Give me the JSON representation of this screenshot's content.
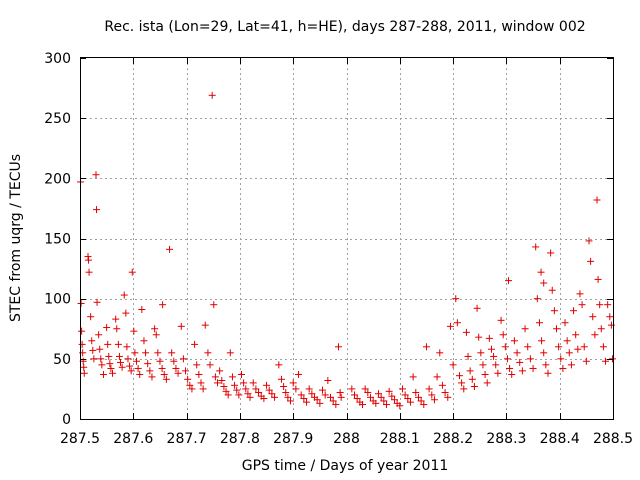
{
  "chart_data": {
    "type": "scatter",
    "title": "Rec. ista (Lon=29, Lat=41, h=HE), days 287-288, 2011, window 002",
    "xlabel": "GPS time / Days of year 2011",
    "ylabel": "STEC from uqrg / TECUs",
    "xlim": [
      287.5,
      288.5
    ],
    "ylim": [
      0,
      300
    ],
    "xticks": [
      287.5,
      287.6,
      287.7,
      287.8,
      287.9,
      288.0,
      288.1,
      288.2,
      288.3,
      288.4,
      288.5
    ],
    "xtick_labels": [
      "287.5",
      "287.6",
      "287.7",
      "287.8",
      "287.9",
      "288",
      "288.1",
      "288.2",
      "288.3",
      "288.4",
      "288.5"
    ],
    "yticks": [
      0,
      50,
      100,
      150,
      200,
      250,
      300
    ],
    "ytick_labels": [
      "0",
      "50",
      "100",
      "150",
      "200",
      "250",
      "300"
    ],
    "grid": true,
    "marker": "+",
    "color": "#e00000",
    "series": [
      {
        "points": [
          [
            287.501,
            197
          ],
          [
            287.502,
            96
          ],
          [
            287.503,
            73
          ],
          [
            287.504,
            62
          ],
          [
            287.505,
            55
          ],
          [
            287.506,
            48
          ],
          [
            287.507,
            43
          ],
          [
            287.508,
            38
          ],
          [
            287.515,
            135
          ],
          [
            287.516,
            132
          ],
          [
            287.517,
            122
          ],
          [
            287.52,
            85
          ],
          [
            287.522,
            65
          ],
          [
            287.524,
            57
          ],
          [
            287.526,
            50
          ],
          [
            287.53,
            203
          ],
          [
            287.531,
            174
          ],
          [
            287.532,
            97
          ],
          [
            287.535,
            70
          ],
          [
            287.537,
            58
          ],
          [
            287.539,
            50
          ],
          [
            287.541,
            45
          ],
          [
            287.544,
            37
          ],
          [
            287.55,
            76
          ],
          [
            287.552,
            62
          ],
          [
            287.554,
            52
          ],
          [
            287.556,
            46
          ],
          [
            287.558,
            42
          ],
          [
            287.561,
            38
          ],
          [
            287.567,
            83
          ],
          [
            287.569,
            75
          ],
          [
            287.572,
            62
          ],
          [
            287.574,
            52
          ],
          [
            287.576,
            47
          ],
          [
            287.579,
            43
          ],
          [
            287.583,
            103
          ],
          [
            287.586,
            88
          ],
          [
            287.588,
            60
          ],
          [
            287.59,
            50
          ],
          [
            287.593,
            44
          ],
          [
            287.596,
            40
          ],
          [
            287.598,
            122
          ],
          [
            287.601,
            73
          ],
          [
            287.603,
            55
          ],
          [
            287.606,
            48
          ],
          [
            287.609,
            42
          ],
          [
            287.612,
            37
          ],
          [
            287.616,
            91
          ],
          [
            287.62,
            65
          ],
          [
            287.623,
            55
          ],
          [
            287.627,
            46
          ],
          [
            287.631,
            40
          ],
          [
            287.635,
            35
          ],
          [
            287.64,
            75
          ],
          [
            287.643,
            70
          ],
          [
            287.646,
            55
          ],
          [
            287.65,
            48
          ],
          [
            287.654,
            42
          ],
          [
            287.658,
            37
          ],
          [
            287.662,
            33
          ],
          [
            287.655,
            95
          ],
          [
            287.668,
            141
          ],
          [
            287.672,
            55
          ],
          [
            287.676,
            48
          ],
          [
            287.68,
            42
          ],
          [
            287.684,
            38
          ],
          [
            287.69,
            77
          ],
          [
            287.694,
            50
          ],
          [
            287.698,
            40
          ],
          [
            287.702,
            33
          ],
          [
            287.706,
            28
          ],
          [
            287.71,
            25
          ],
          [
            287.715,
            62
          ],
          [
            287.719,
            45
          ],
          [
            287.723,
            37
          ],
          [
            287.727,
            30
          ],
          [
            287.731,
            25
          ],
          [
            287.735,
            78
          ],
          [
            287.74,
            55
          ],
          [
            287.744,
            45
          ],
          [
            287.748,
            269
          ],
          [
            287.751,
            95
          ],
          [
            287.754,
            35
          ],
          [
            287.758,
            30
          ],
          [
            287.762,
            40
          ],
          [
            287.766,
            32
          ],
          [
            287.77,
            27
          ],
          [
            287.774,
            23
          ],
          [
            287.778,
            20
          ],
          [
            287.782,
            55
          ],
          [
            287.786,
            35
          ],
          [
            287.79,
            28
          ],
          [
            287.794,
            24
          ],
          [
            287.798,
            20
          ],
          [
            287.803,
            37
          ],
          [
            287.807,
            30
          ],
          [
            287.811,
            25
          ],
          [
            287.815,
            21
          ],
          [
            287.819,
            18
          ],
          [
            287.825,
            30
          ],
          [
            287.83,
            25
          ],
          [
            287.835,
            22
          ],
          [
            287.84,
            19
          ],
          [
            287.845,
            17
          ],
          [
            287.85,
            28
          ],
          [
            287.855,
            24
          ],
          [
            287.86,
            21
          ],
          [
            287.865,
            18
          ],
          [
            287.873,
            45
          ],
          [
            287.878,
            33
          ],
          [
            287.882,
            27
          ],
          [
            287.886,
            22
          ],
          [
            287.89,
            18
          ],
          [
            287.895,
            15
          ],
          [
            287.9,
            30
          ],
          [
            287.905,
            25
          ],
          [
            287.91,
            37
          ],
          [
            287.915,
            20
          ],
          [
            287.92,
            17
          ],
          [
            287.925,
            14
          ],
          [
            287.93,
            25
          ],
          [
            287.935,
            21
          ],
          [
            287.94,
            18
          ],
          [
            287.945,
            16
          ],
          [
            287.95,
            13
          ],
          [
            287.955,
            24
          ],
          [
            287.96,
            20
          ],
          [
            287.965,
            32
          ],
          [
            287.97,
            18
          ],
          [
            287.975,
            15
          ],
          [
            287.98,
            12
          ],
          [
            287.985,
            60
          ],
          [
            287.988,
            22
          ],
          [
            287.99,
            18
          ],
          [
            288.01,
            25
          ],
          [
            288.015,
            20
          ],
          [
            288.02,
            17
          ],
          [
            288.025,
            14
          ],
          [
            288.03,
            12
          ],
          [
            288.035,
            25
          ],
          [
            288.04,
            22
          ],
          [
            288.045,
            18
          ],
          [
            288.05,
            15
          ],
          [
            288.055,
            13
          ],
          [
            288.06,
            21
          ],
          [
            288.065,
            18
          ],
          [
            288.07,
            15
          ],
          [
            288.075,
            12
          ],
          [
            288.08,
            23
          ],
          [
            288.085,
            19
          ],
          [
            288.09,
            16
          ],
          [
            288.095,
            13
          ],
          [
            288.1,
            11
          ],
          [
            288.105,
            25
          ],
          [
            288.11,
            20
          ],
          [
            288.115,
            17
          ],
          [
            288.12,
            14
          ],
          [
            288.125,
            35
          ],
          [
            288.13,
            22
          ],
          [
            288.135,
            18
          ],
          [
            288.14,
            15
          ],
          [
            288.145,
            12
          ],
          [
            288.15,
            60
          ],
          [
            288.155,
            25
          ],
          [
            288.16,
            20
          ],
          [
            288.165,
            16
          ],
          [
            288.17,
            35
          ],
          [
            288.175,
            55
          ],
          [
            288.18,
            28
          ],
          [
            288.185,
            22
          ],
          [
            288.19,
            18
          ],
          [
            288.195,
            77
          ],
          [
            288.2,
            45
          ],
          [
            288.205,
            100
          ],
          [
            288.208,
            80
          ],
          [
            288.212,
            36
          ],
          [
            288.216,
            30
          ],
          [
            288.22,
            25
          ],
          [
            288.225,
            72
          ],
          [
            288.228,
            52
          ],
          [
            288.232,
            40
          ],
          [
            288.236,
            33
          ],
          [
            288.24,
            27
          ],
          [
            288.245,
            92
          ],
          [
            288.248,
            68
          ],
          [
            288.252,
            55
          ],
          [
            288.256,
            45
          ],
          [
            288.26,
            37
          ],
          [
            288.264,
            30
          ],
          [
            288.268,
            67
          ],
          [
            288.272,
            58
          ],
          [
            288.276,
            52
          ],
          [
            288.28,
            45
          ],
          [
            288.284,
            38
          ],
          [
            288.29,
            82
          ],
          [
            288.294,
            70
          ],
          [
            288.298,
            60
          ],
          [
            288.302,
            50
          ],
          [
            288.306,
            42
          ],
          [
            288.31,
            37
          ],
          [
            288.304,
            115
          ],
          [
            288.315,
            65
          ],
          [
            288.32,
            55
          ],
          [
            288.325,
            47
          ],
          [
            288.33,
            40
          ],
          [
            288.335,
            75
          ],
          [
            288.34,
            60
          ],
          [
            288.345,
            50
          ],
          [
            288.35,
            42
          ],
          [
            288.355,
            143
          ],
          [
            288.358,
            100
          ],
          [
            288.362,
            80
          ],
          [
            288.366,
            65
          ],
          [
            288.37,
            55
          ],
          [
            288.374,
            45
          ],
          [
            288.378,
            38
          ],
          [
            288.365,
            122
          ],
          [
            288.37,
            113
          ],
          [
            288.383,
            138
          ],
          [
            288.386,
            107
          ],
          [
            288.39,
            90
          ],
          [
            288.394,
            75
          ],
          [
            288.398,
            60
          ],
          [
            288.402,
            50
          ],
          [
            288.406,
            42
          ],
          [
            288.41,
            80
          ],
          [
            288.414,
            65
          ],
          [
            288.418,
            55
          ],
          [
            288.422,
            45
          ],
          [
            288.426,
            90
          ],
          [
            288.43,
            70
          ],
          [
            288.434,
            58
          ],
          [
            288.438,
            104
          ],
          [
            288.442,
            95
          ],
          [
            288.446,
            60
          ],
          [
            288.45,
            48
          ],
          [
            288.455,
            148
          ],
          [
            288.458,
            131
          ],
          [
            288.462,
            85
          ],
          [
            288.466,
            70
          ],
          [
            288.47,
            182
          ],
          [
            288.472,
            116
          ],
          [
            288.475,
            95
          ],
          [
            288.478,
            75
          ],
          [
            288.482,
            60
          ],
          [
            288.486,
            48
          ],
          [
            288.49,
            95
          ],
          [
            288.494,
            85
          ],
          [
            288.497,
            78
          ],
          [
            288.499,
            50
          ]
        ]
      }
    ]
  }
}
